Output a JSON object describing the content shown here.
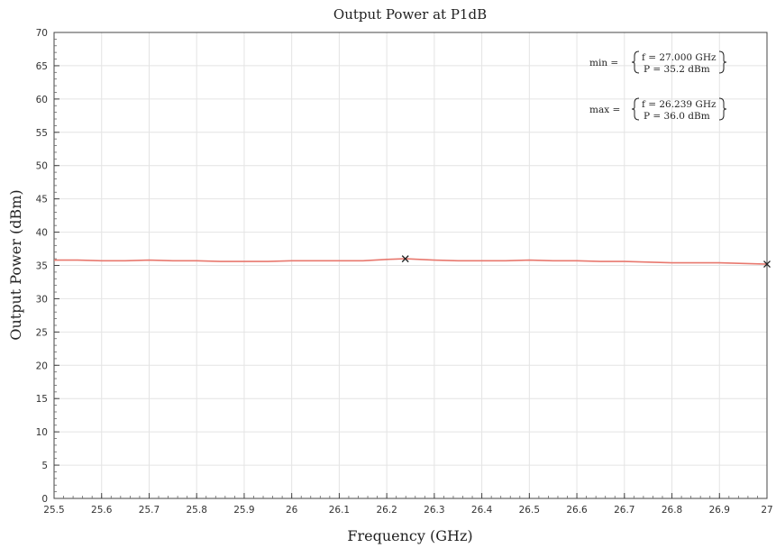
{
  "chart_data": {
    "type": "line",
    "title": "Output Power at P1dB",
    "xlabel": "Frequency (GHz)",
    "ylabel": "Output Power (dBm)",
    "xlim": [
      25.5,
      27.0
    ],
    "ylim": [
      0,
      70
    ],
    "grid": true,
    "x_ticks": [
      "25.5",
      "25.6",
      "25.7",
      "25.8",
      "25.9",
      "26",
      "26.1",
      "26.2",
      "26.3",
      "26.4",
      "26.5",
      "26.6",
      "26.7",
      "26.8",
      "26.9",
      "27"
    ],
    "y_ticks": [
      "0",
      "5",
      "10",
      "15",
      "20",
      "25",
      "30",
      "35",
      "40",
      "45",
      "50",
      "55",
      "60",
      "65",
      "70"
    ],
    "series": [
      {
        "color": "#e8786e",
        "x": [
          25.5,
          25.55,
          25.6,
          25.65,
          25.7,
          25.75,
          25.8,
          25.85,
          25.9,
          25.95,
          26.0,
          26.05,
          26.1,
          26.15,
          26.2,
          26.239,
          26.3,
          26.35,
          26.4,
          26.45,
          26.5,
          26.55,
          26.6,
          26.65,
          26.7,
          26.75,
          26.8,
          26.85,
          26.9,
          26.95,
          27.0
        ],
        "y": [
          35.8,
          35.8,
          35.7,
          35.7,
          35.8,
          35.7,
          35.7,
          35.6,
          35.6,
          35.6,
          35.7,
          35.7,
          35.7,
          35.7,
          35.9,
          36.0,
          35.8,
          35.7,
          35.7,
          35.7,
          35.8,
          35.7,
          35.7,
          35.6,
          35.6,
          35.5,
          35.4,
          35.4,
          35.4,
          35.3,
          35.2
        ]
      }
    ],
    "markers": [
      {
        "name": "max",
        "x": 26.239,
        "y": 36.0,
        "symbol": "x"
      },
      {
        "name": "min",
        "x": 27.0,
        "y": 35.2,
        "symbol": "x"
      }
    ],
    "annotations": {
      "min": {
        "label": "min =",
        "line1": "f = 27.000 GHz",
        "line2": "P = 35.2 dBm"
      },
      "max": {
        "label": "max =",
        "line1": "f = 26.239 GHz",
        "line2": "P = 36.0 dBm"
      }
    }
  }
}
